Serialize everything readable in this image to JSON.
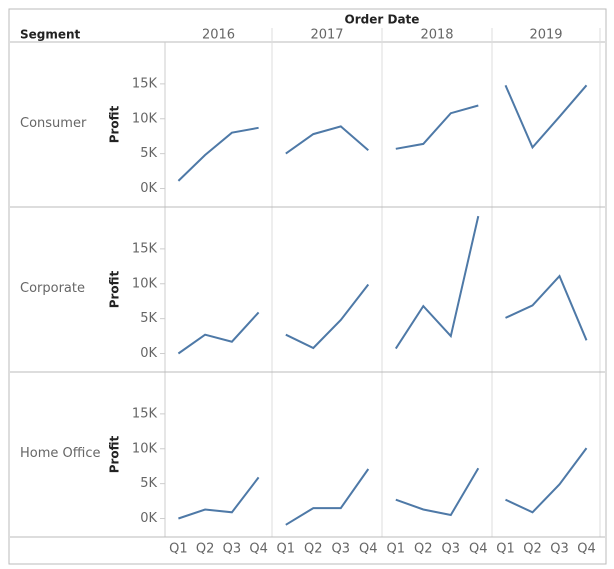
{
  "chart_data": {
    "type": "line",
    "column_header": "Order Date",
    "row_header": "Segment",
    "y_label": "Profit",
    "columns": [
      "2016",
      "2017",
      "2018",
      "2019"
    ],
    "categories": [
      "Q1",
      "Q2",
      "Q3",
      "Q4"
    ],
    "color": "#4e79a7",
    "ylim": [
      -1500,
      21000
    ],
    "yticks": [
      {
        "value": 0,
        "label": "0K"
      },
      {
        "value": 5000,
        "label": "5K"
      },
      {
        "value": 10000,
        "label": "10K"
      },
      {
        "value": 15000,
        "label": "15K"
      }
    ],
    "rows": [
      {
        "name": "Consumer",
        "panels": [
          [
            1100,
            4800,
            8000,
            8700
          ],
          [
            5000,
            7800,
            8900,
            5500
          ],
          [
            5700,
            6400,
            10800,
            11900
          ],
          [
            14800,
            5900,
            10300,
            14800
          ]
        ]
      },
      {
        "name": "Corporate",
        "panels": [
          [
            0,
            2700,
            1700,
            5900
          ],
          [
            2700,
            800,
            4800,
            9900
          ],
          [
            700,
            6800,
            2500,
            19700
          ],
          [
            5100,
            6900,
            11100,
            1900
          ]
        ]
      },
      {
        "name": "Home Office",
        "panels": [
          [
            0,
            1300,
            900,
            5900
          ],
          [
            -900,
            1500,
            1500,
            7100
          ],
          [
            2700,
            1300,
            500,
            7200
          ],
          [
            2700,
            900,
            4900,
            10100
          ]
        ]
      }
    ]
  }
}
